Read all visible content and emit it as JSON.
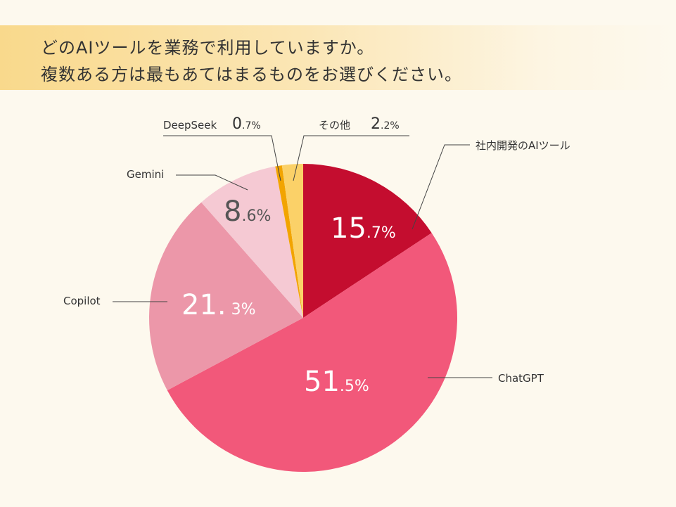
{
  "title": {
    "line1": "どのAIツールを業務で利用していますか。",
    "line2": "複数ある方は最もあてはまるものをお選びください。"
  },
  "chart_data": {
    "type": "pie",
    "start": "12 o'clock, clockwise",
    "slices": [
      {
        "name": "社内開発のAIツール",
        "value": 15.7,
        "int": "15",
        "dec": ".7%",
        "color": "#c40d2f",
        "text_color": "#ffffff"
      },
      {
        "name": "ChatGPT",
        "value": 51.5,
        "int": "51",
        "dec": ".5%",
        "color": "#f2587a",
        "text_color": "#ffffff"
      },
      {
        "name": "Copilot",
        "value": 21.3,
        "int": "21.",
        "dec": " 3%",
        "color": "#ec97a9",
        "text_color": "#ffffff"
      },
      {
        "name": "Gemini",
        "value": 8.6,
        "int": "8",
        "dec": ".6%",
        "color": "#f5c9d3",
        "text_color": "#555555"
      },
      {
        "name": "DeepSeek",
        "value": 0.7,
        "int": "0",
        "dec": ".7%",
        "color": "#f2a400",
        "text_color": "#333333"
      },
      {
        "name": "その他",
        "value": 2.2,
        "int": "2",
        "dec": ".2%",
        "color": "#fbd168",
        "text_color": "#333333"
      }
    ]
  }
}
